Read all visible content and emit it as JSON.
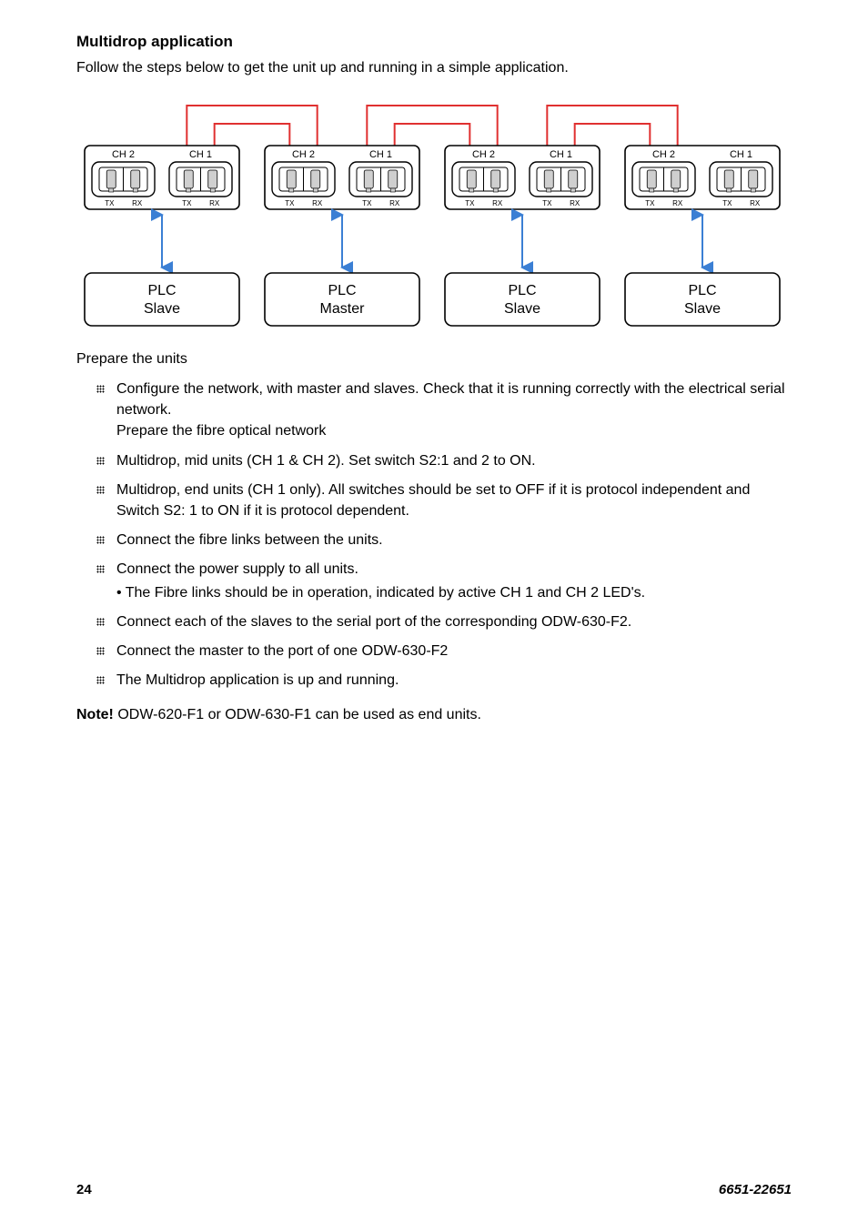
{
  "heading": "Multidrop application",
  "intro": "Follow the steps below to get the unit up and running in a simple application.",
  "diagram": {
    "units": [
      {
        "plc": "PLC",
        "role": "Slave",
        "ch2": "CH 2",
        "ch1": "CH 1"
      },
      {
        "plc": "PLC",
        "role": "Master",
        "ch2": "CH 2",
        "ch1": "CH 1"
      },
      {
        "plc": "PLC",
        "role": "Slave",
        "ch2": "CH 2",
        "ch1": "CH 1"
      },
      {
        "plc": "PLC",
        "role": "Slave",
        "ch2": "CH 2",
        "ch1": "CH 1"
      }
    ],
    "port_tx": "TX",
    "port_rx": "RX",
    "colors": {
      "unit_border": "#000000",
      "unit_fill": "#ffffff",
      "wire_red": "#e03030",
      "link_blue": "#3b7fd4",
      "port_fill": "#cfcfcf",
      "port_stroke": "#000000",
      "text": "#000000"
    }
  },
  "prepare_label": "Prepare the units",
  "steps": [
    {
      "text": "Configure the network, with master and slaves. Check that it is running correctly with the electrical serial network.",
      "extra": "Prepare the fibre optical network"
    },
    {
      "text": "Multidrop, mid units (CH 1 & CH 2). Set switch S2:1 and 2 to ON."
    },
    {
      "text": "Multidrop, end units (CH 1 only). All switches should be set to OFF if it is protocol independent and Switch S2: 1 to ON if it is protocol dependent."
    },
    {
      "text": "Connect the fibre links between the units."
    },
    {
      "text": "Connect the power supply to all units.",
      "sub": "• The Fibre links should be in operation, indicated by active CH 1 and CH 2 LED's."
    },
    {
      "text": "Connect each of the slaves to the serial port of the corresponding ODW-630-F2."
    },
    {
      "text": "Connect the master to the port of one ODW-630-F2"
    },
    {
      "text": "The Multidrop application is up and running."
    }
  ],
  "note_bold": "Note!",
  "note_text": " ODW-620-F1 or ODW-630-F1 can be used as end units.",
  "footer": {
    "page": "24",
    "doc": "6651-22651"
  }
}
